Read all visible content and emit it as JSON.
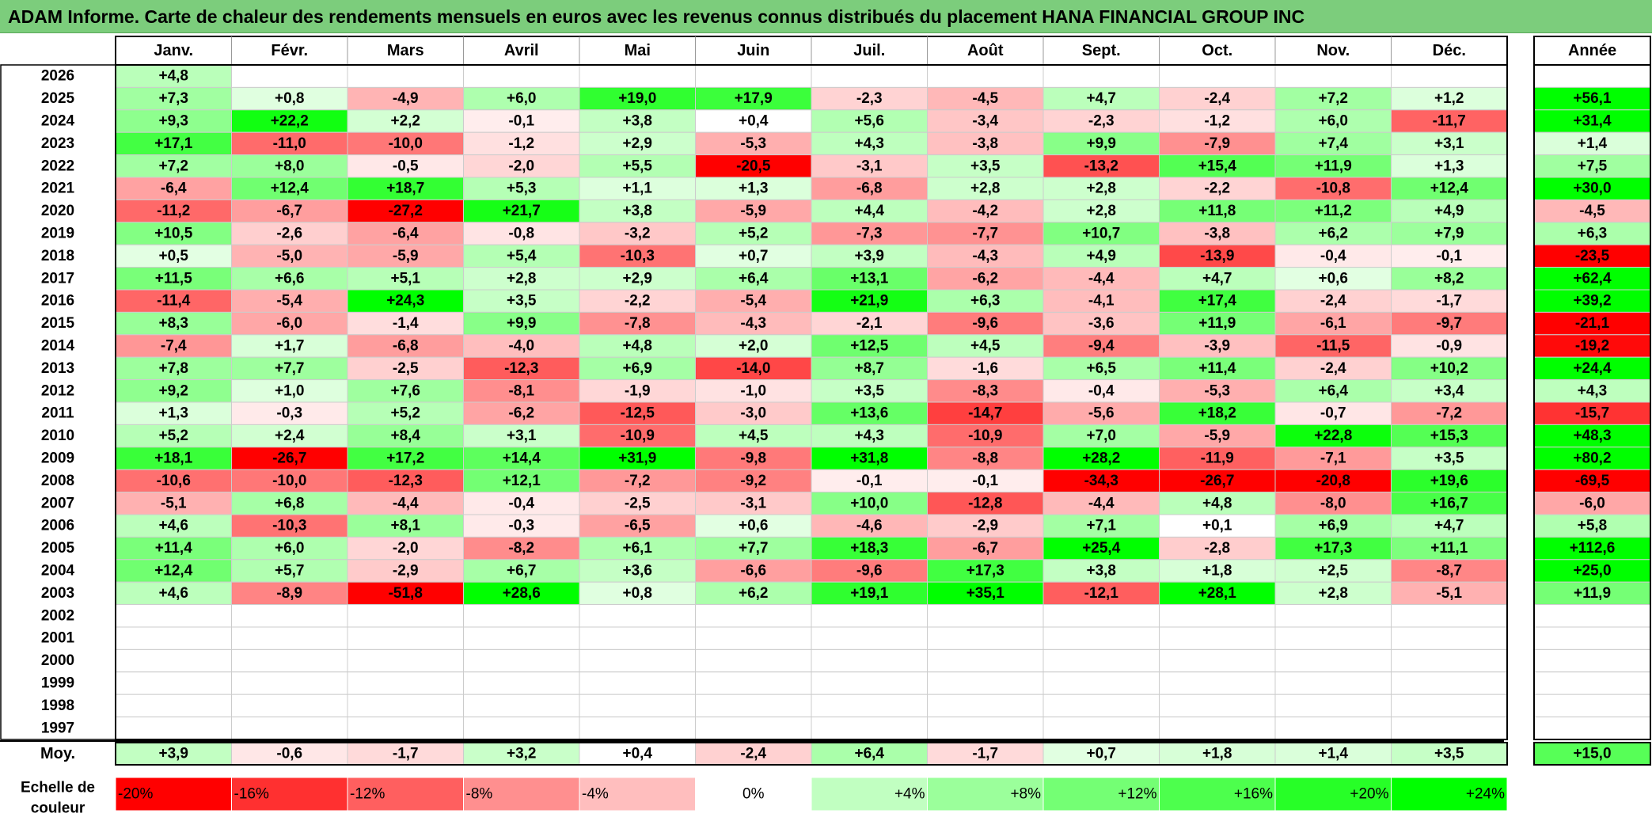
{
  "title": "ADAM Informe. Carte de chaleur des rendements mensuels en euros avec les revenus connus distribués du placement HANA FINANCIAL GROUP INC",
  "chart_data": {
    "type": "heatmap",
    "months": [
      "Janv.",
      "Févr.",
      "Mars",
      "Avril",
      "Mai",
      "Juin",
      "Juil.",
      "Août",
      "Sept.",
      "Oct.",
      "Nov.",
      "Déc."
    ],
    "year_header": "Année",
    "years": [
      "2026",
      "2025",
      "2024",
      "2023",
      "2022",
      "2021",
      "2020",
      "2019",
      "2018",
      "2017",
      "2016",
      "2015",
      "2014",
      "2013",
      "2012",
      "2011",
      "2010",
      "2009",
      "2008",
      "2007",
      "2006",
      "2005",
      "2004",
      "2003",
      "2002",
      "2001",
      "2000",
      "1999",
      "1998",
      "1997"
    ],
    "values": [
      [
        4.8,
        null,
        null,
        null,
        null,
        null,
        null,
        null,
        null,
        null,
        null,
        null
      ],
      [
        7.3,
        0.8,
        -4.9,
        6.0,
        19.0,
        17.9,
        -2.3,
        -4.5,
        4.7,
        -2.4,
        7.2,
        1.2
      ],
      [
        9.3,
        22.2,
        2.2,
        -0.1,
        3.8,
        0.4,
        5.6,
        -3.4,
        -2.3,
        -1.2,
        6.0,
        -11.7
      ],
      [
        17.1,
        -11.0,
        -10.0,
        -1.2,
        2.9,
        -5.3,
        4.3,
        -3.8,
        9.9,
        -7.9,
        7.4,
        3.1
      ],
      [
        7.2,
        8.0,
        -0.5,
        -2.0,
        5.5,
        -20.5,
        -3.1,
        3.5,
        -13.2,
        15.4,
        11.9,
        1.3
      ],
      [
        -6.4,
        12.4,
        18.7,
        5.3,
        1.1,
        1.3,
        -6.8,
        2.8,
        2.8,
        -2.2,
        -10.8,
        12.4
      ],
      [
        -11.2,
        -6.7,
        -27.2,
        21.7,
        3.8,
        -5.9,
        4.4,
        -4.2,
        2.8,
        11.8,
        11.2,
        4.9
      ],
      [
        10.5,
        -2.6,
        -6.4,
        -0.8,
        -3.2,
        5.2,
        -7.3,
        -7.7,
        10.7,
        -3.8,
        6.2,
        7.9
      ],
      [
        0.5,
        -5.0,
        -5.9,
        5.4,
        -10.3,
        0.7,
        3.9,
        -4.3,
        4.9,
        -13.9,
        -0.4,
        -0.1
      ],
      [
        11.5,
        6.6,
        5.1,
        2.8,
        2.9,
        6.4,
        13.1,
        -6.2,
        -4.4,
        4.7,
        0.6,
        8.2
      ],
      [
        -11.4,
        -5.4,
        24.3,
        3.5,
        -2.2,
        -5.4,
        21.9,
        6.3,
        -4.1,
        17.4,
        -2.4,
        -1.7
      ],
      [
        8.3,
        -6.0,
        -1.4,
        9.9,
        -7.8,
        -4.3,
        -2.1,
        -9.6,
        -3.6,
        11.9,
        -6.1,
        -9.7
      ],
      [
        -7.4,
        1.7,
        -6.8,
        -4.0,
        4.8,
        2.0,
        12.5,
        4.5,
        -9.4,
        -3.9,
        -11.5,
        -0.9
      ],
      [
        7.8,
        7.7,
        -2.5,
        -12.3,
        6.9,
        -14.0,
        8.7,
        -1.6,
        6.5,
        11.4,
        -2.4,
        10.2
      ],
      [
        9.2,
        1.0,
        7.6,
        -8.1,
        -1.9,
        -1.0,
        3.5,
        -8.3,
        -0.4,
        -5.3,
        6.4,
        3.4
      ],
      [
        1.3,
        -0.3,
        5.2,
        -6.2,
        -12.5,
        -3.0,
        13.6,
        -14.7,
        -5.6,
        18.2,
        -0.7,
        -7.2
      ],
      [
        5.2,
        2.4,
        8.4,
        3.1,
        -10.9,
        4.5,
        4.3,
        -10.9,
        7.0,
        -5.9,
        22.8,
        15.3
      ],
      [
        18.1,
        -26.7,
        17.2,
        14.4,
        31.9,
        -9.8,
        31.8,
        -8.8,
        28.2,
        -11.9,
        -7.1,
        3.5
      ],
      [
        -10.6,
        -10.0,
        -12.3,
        12.1,
        -7.2,
        -9.2,
        -0.1,
        -0.1,
        -34.3,
        -26.7,
        -20.8,
        19.6
      ],
      [
        -5.1,
        6.8,
        -4.4,
        -0.4,
        -2.5,
        -3.1,
        10.0,
        -12.8,
        -4.4,
        4.8,
        -8.0,
        16.7
      ],
      [
        4.6,
        -10.3,
        8.1,
        -0.3,
        -6.5,
        0.6,
        -4.6,
        -2.9,
        7.1,
        0.1,
        6.9,
        4.7
      ],
      [
        11.4,
        6.0,
        -2.0,
        -8.2,
        6.1,
        7.7,
        18.3,
        -6.7,
        25.4,
        -2.8,
        17.3,
        11.1
      ],
      [
        12.4,
        5.7,
        -2.9,
        6.7,
        3.6,
        -6.6,
        -9.6,
        17.3,
        3.8,
        1.8,
        2.5,
        -8.7
      ],
      [
        4.6,
        -8.9,
        -51.8,
        28.6,
        0.8,
        6.2,
        19.1,
        35.1,
        -12.1,
        28.1,
        2.8,
        -5.1
      ],
      [
        null,
        null,
        null,
        null,
        null,
        null,
        null,
        null,
        null,
        null,
        null,
        null
      ],
      [
        null,
        null,
        null,
        null,
        null,
        null,
        null,
        null,
        null,
        null,
        null,
        null
      ],
      [
        null,
        null,
        null,
        null,
        null,
        null,
        null,
        null,
        null,
        null,
        null,
        null
      ],
      [
        null,
        null,
        null,
        null,
        null,
        null,
        null,
        null,
        null,
        null,
        null,
        null
      ],
      [
        null,
        null,
        null,
        null,
        null,
        null,
        null,
        null,
        null,
        null,
        null,
        null
      ],
      [
        null,
        null,
        null,
        null,
        null,
        null,
        null,
        null,
        null,
        null,
        null,
        null
      ]
    ],
    "annual": [
      null,
      56.1,
      31.4,
      1.4,
      7.5,
      30.0,
      -4.5,
      6.3,
      -23.5,
      62.4,
      39.2,
      -21.1,
      -19.2,
      24.4,
      4.3,
      -15.7,
      48.3,
      80.2,
      -69.5,
      -6.0,
      5.8,
      112.6,
      25.0,
      11.9,
      null,
      null,
      null,
      null,
      null,
      null
    ],
    "average_label": "Moy.",
    "average": [
      3.9,
      -0.6,
      -1.7,
      3.2,
      0.4,
      -2.4,
      6.4,
      -1.7,
      0.7,
      1.8,
      1.4,
      3.5
    ],
    "average_annual": 15.0,
    "scale_label_line1": "Echelle de",
    "scale_label_line2": "couleur",
    "scale": [
      "-20%",
      "-16%",
      "-12%",
      "-8%",
      "-4%",
      "0%",
      "+4%",
      "+8%",
      "+12%",
      "+16%",
      "+20%",
      "+24%"
    ],
    "scale_values": [
      -20,
      -16,
      -12,
      -8,
      -4,
      0,
      4,
      8,
      12,
      16,
      20,
      24
    ]
  }
}
